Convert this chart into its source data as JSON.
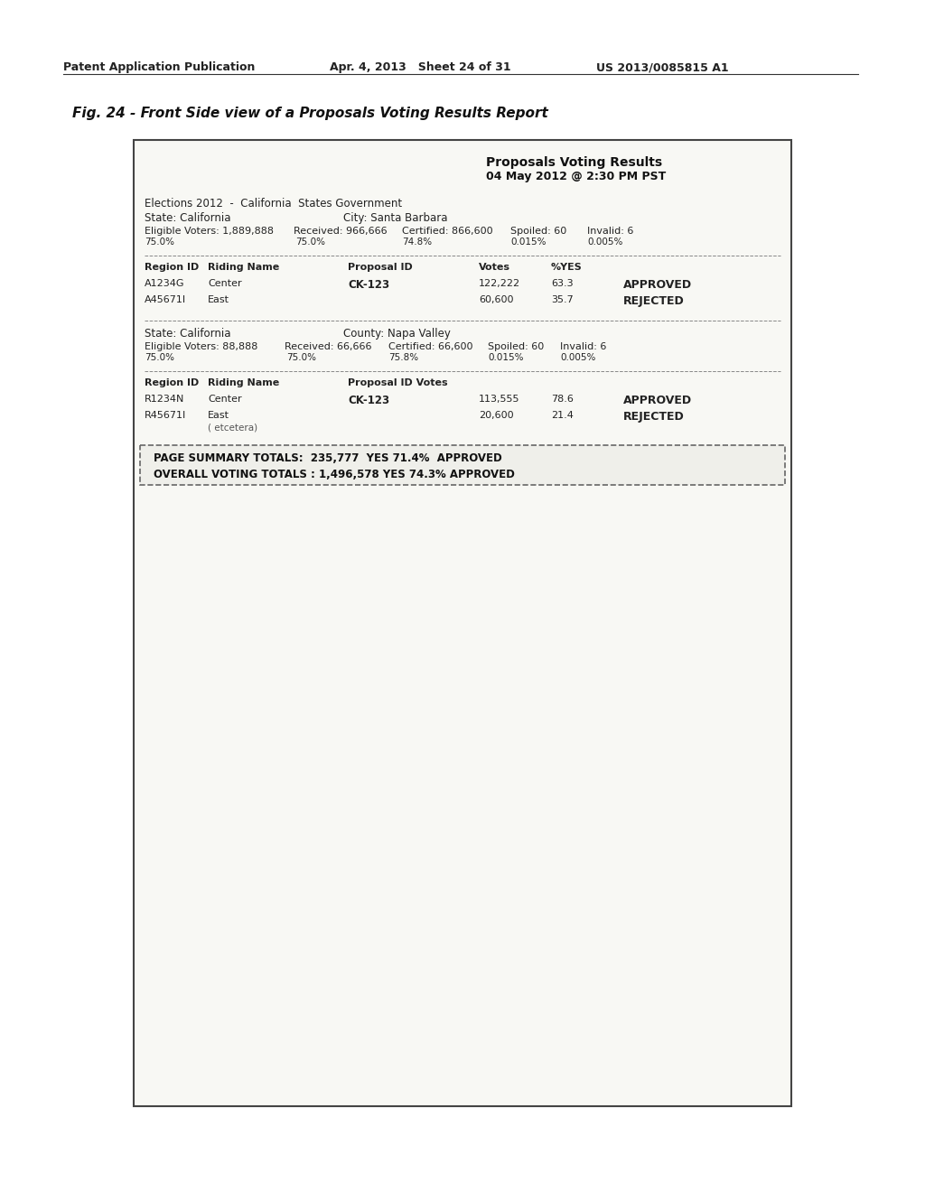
{
  "bg_color": "#f5f5f0",
  "page_bg": "#ffffff",
  "border_color": "#555555",
  "header_line1": "Patent Application Publication",
  "header_line2": "Apr. 4, 2013   Sheet 24 of 31",
  "header_line3": "US 2013/0085815 A1",
  "fig_title": "Fig. 24 - Front Side view of a Proposals Voting Results Report",
  "report_title_line1": "Proposals Voting Results",
  "report_title_line2": "04 May 2012 @ 2:30 PM PST",
  "elections_line": "Elections 2012  -  California  States Government",
  "state_line": "State: California",
  "city_line": "City: Santa Barbara",
  "eligible1_line": "Eligible Voters: 1,889,888   Received: 966,666   Certified: 866,600   Spoiled: 60   Invalid: 6",
  "eligible1_pcts": "75.0%                    74.8%              0.015%    0.005%",
  "region_header": "Region ID   Riding Name          Proposal ID        Votes    %YES",
  "row1_id": "A1234G",
  "row1_name": "Center",
  "row1_propid": "CK-123",
  "row1_votes": "122,222",
  "row1_pct": "63.3",
  "row1_status": "APPROVED",
  "row2_id": "A45671I",
  "row2_name": "East",
  "row2_propid": "",
  "row2_votes": "60,600",
  "row2_pct": "35.7",
  "row2_status": "REJECTED",
  "state2_line": "State: California",
  "county2_line": "County: Napa Valley",
  "eligible2_line": "Eligible Voters: 88,888   Received: 66,666   Certified: 66,600   Spoiled: 60   Invalid: 6",
  "eligible2_pcts": "75.0%                   75.8%              0.015%    0.005%",
  "region2_header": "Region ID   Riding Name          Proposal ID Votes",
  "row3_id": "R1234N",
  "row3_name": "Center",
  "row3_propid": "CK-123",
  "row3_votes": "113,555",
  "row3_pct": "78.6",
  "row3_status": "APPROVED",
  "row4_id": "R45671I",
  "row4_name": "East",
  "row4_extra": "( etcetera)",
  "row4_propid": "",
  "row4_votes": "20,600",
  "row4_pct": "21.4",
  "row4_status": "REJECTED",
  "summary_line1": "PAGE SUMMARY TOTALS:  235,777  YES 71.4%  APPROVED",
  "summary_line2": "OVERALL VOTING TOTALS : 1,496,578 YES 74.3% APPROVED",
  "text_color": "#333333",
  "bold_color": "#111111"
}
